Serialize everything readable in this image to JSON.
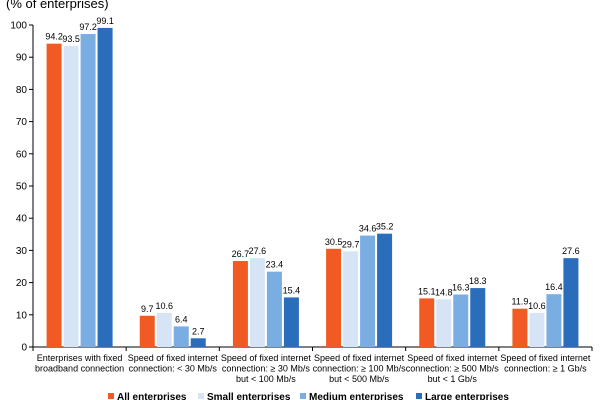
{
  "chart_data": {
    "type": "bar",
    "title": "(% of enterprises)",
    "categories": [
      [
        "Enterprises with fixed",
        "broadband connection"
      ],
      [
        "Speed of fixed internet",
        "connection: < 30 Mb/s"
      ],
      [
        "Speed of fixed internet",
        "connection: ≥ 30 Mb/s",
        "but < 100 Mb/s"
      ],
      [
        "Speed of fixed internet",
        "connection: ≥ 100 Mb/s",
        "but < 500 Mb/s"
      ],
      [
        "Speed of fixed internet",
        "connection: ≥ 500 Mb/s",
        "but < 1 Gb/s"
      ],
      [
        "Speed of fixed internet",
        "connection: ≥ 1 Gb/s"
      ]
    ],
    "series": [
      {
        "name": "All enterprises",
        "color": "#f15a22",
        "values": [
          94.2,
          9.7,
          26.7,
          30.5,
          15.1,
          11.9
        ]
      },
      {
        "name": "Small enterprises",
        "color": "#d6e4f5",
        "values": [
          93.5,
          10.6,
          27.6,
          29.7,
          14.8,
          10.6
        ]
      },
      {
        "name": "Medium enterprises",
        "color": "#7aaee3",
        "values": [
          97.2,
          6.4,
          23.4,
          34.6,
          16.3,
          16.4
        ]
      },
      {
        "name": "Large enterprises",
        "color": "#2a6ebb",
        "values": [
          99.1,
          2.7,
          15.4,
          35.2,
          18.3,
          27.6
        ]
      }
    ],
    "ylim": [
      0,
      100
    ],
    "yticks": [
      0,
      10,
      20,
      30,
      40,
      50,
      60,
      70,
      80,
      90,
      100
    ],
    "grid": false,
    "legend_position": "bottom"
  }
}
